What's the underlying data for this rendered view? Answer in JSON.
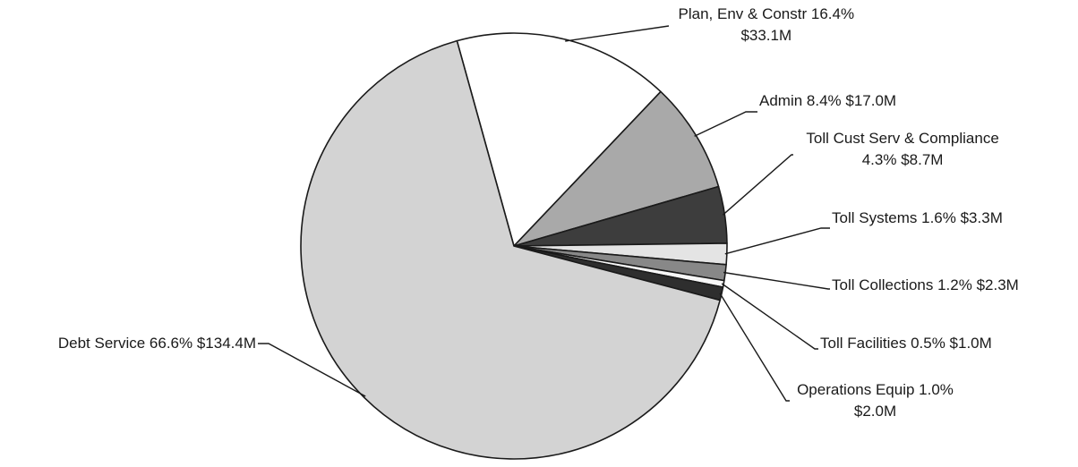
{
  "chart_data": {
    "type": "pie",
    "title": "",
    "slices": [
      {
        "label_lines": [
          "Plan, Env & Constr 16.4%",
          "$33.1M"
        ],
        "category": "Plan, Env & Constr",
        "percent": 16.4,
        "value": "$33.1M",
        "value_millions": 33.1,
        "color": "#ffffff"
      },
      {
        "label_lines": [
          "Admin 8.4% $17.0M"
        ],
        "category": "Admin",
        "percent": 8.4,
        "value": "$17.0M",
        "value_millions": 17.0,
        "color": "#a9a9a9"
      },
      {
        "label_lines": [
          "Toll Cust Serv & Compliance",
          "4.3% $8.7M"
        ],
        "category": "Toll Cust Serv & Compliance",
        "percent": 4.3,
        "value": "$8.7M",
        "value_millions": 8.7,
        "color": "#3d3d3d"
      },
      {
        "label_lines": [
          "Toll Systems 1.6% $3.3M"
        ],
        "category": "Toll Systems",
        "percent": 1.6,
        "value": "$3.3M",
        "value_millions": 3.3,
        "color": "#e4e4e4"
      },
      {
        "label_lines": [
          "Toll Collections 1.2% $2.3M"
        ],
        "category": "Toll Collections",
        "percent": 1.2,
        "value": "$2.3M",
        "value_millions": 2.3,
        "color": "#888888"
      },
      {
        "label_lines": [
          "Toll Facilities 0.5% $1.0M"
        ],
        "category": "Toll Facilities",
        "percent": 0.5,
        "value": "$1.0M",
        "value_millions": 1.0,
        "color": "#f7f7f7"
      },
      {
        "label_lines": [
          "Operations Equip 1.0%",
          "$2.0M"
        ],
        "category": "Operations Equip",
        "percent": 1.0,
        "value": "$2.0M",
        "value_millions": 2.0,
        "color": "#2e2e2e"
      },
      {
        "label_lines": [
          "Debt Service 66.6% $134.4M"
        ],
        "category": "Debt Service",
        "percent": 66.6,
        "value": "$134.4M",
        "value_millions": 134.4,
        "color": "#d3d3d3"
      }
    ]
  }
}
